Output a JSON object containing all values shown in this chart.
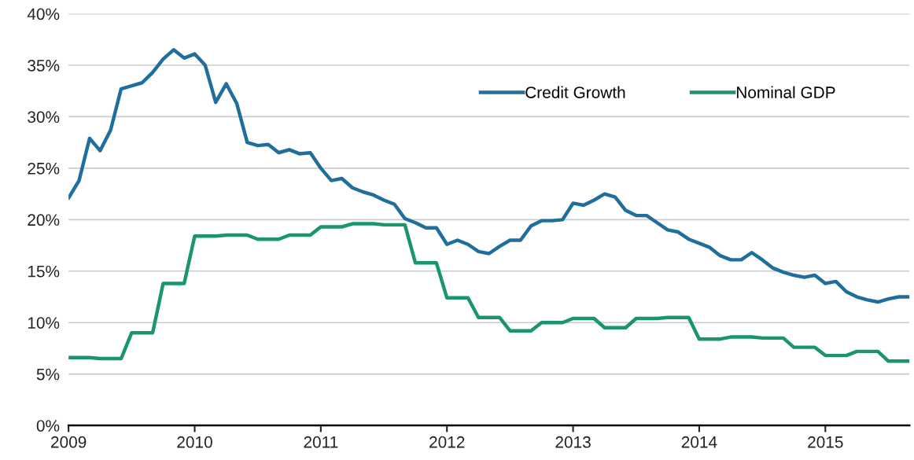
{
  "chart_data": {
    "type": "line",
    "x": [
      "2009-01",
      "2009-02",
      "2009-03",
      "2009-04",
      "2009-05",
      "2009-06",
      "2009-07",
      "2009-08",
      "2009-09",
      "2009-10",
      "2009-11",
      "2009-12",
      "2010-01",
      "2010-02",
      "2010-03",
      "2010-04",
      "2010-05",
      "2010-06",
      "2010-07",
      "2010-08",
      "2010-09",
      "2010-10",
      "2010-11",
      "2010-12",
      "2011-01",
      "2011-02",
      "2011-03",
      "2011-04",
      "2011-05",
      "2011-06",
      "2011-07",
      "2011-08",
      "2011-09",
      "2011-10",
      "2011-11",
      "2011-12",
      "2012-01",
      "2012-02",
      "2012-03",
      "2012-04",
      "2012-05",
      "2012-06",
      "2012-07",
      "2012-08",
      "2012-09",
      "2012-10",
      "2012-11",
      "2012-12",
      "2013-01",
      "2013-02",
      "2013-03",
      "2013-04",
      "2013-05",
      "2013-06",
      "2013-07",
      "2013-08",
      "2013-09",
      "2013-10",
      "2013-11",
      "2013-12",
      "2014-01",
      "2014-02",
      "2014-03",
      "2014-04",
      "2014-05",
      "2014-06",
      "2014-07",
      "2014-08",
      "2014-09",
      "2014-10",
      "2014-11",
      "2014-12",
      "2015-01",
      "2015-02",
      "2015-03",
      "2015-04",
      "2015-05",
      "2015-06",
      "2015-07",
      "2015-08",
      "2015-09"
    ],
    "series": [
      {
        "name": "Credit Growth",
        "color": "#1f6e9c",
        "values": [
          22.1,
          23.8,
          27.9,
          26.7,
          28.7,
          32.7,
          33.0,
          33.3,
          34.3,
          35.6,
          36.5,
          35.7,
          36.1,
          35.0,
          31.4,
          33.2,
          31.3,
          27.5,
          27.2,
          27.3,
          26.5,
          26.8,
          26.4,
          26.5,
          25.0,
          23.8,
          24.0,
          23.1,
          22.7,
          22.4,
          21.9,
          21.5,
          20.1,
          19.7,
          19.2,
          19.2,
          17.6,
          18.0,
          17.6,
          16.9,
          16.7,
          17.4,
          18.0,
          18.0,
          19.4,
          19.9,
          19.9,
          20.0,
          21.6,
          21.4,
          21.9,
          22.5,
          22.2,
          20.9,
          20.4,
          20.4,
          19.7,
          19.0,
          18.8,
          18.1,
          17.7,
          17.3,
          16.5,
          16.1,
          16.1,
          16.8,
          16.1,
          15.3,
          14.9,
          14.6,
          14.4,
          14.6,
          13.8,
          14.0,
          13.0,
          12.5,
          12.2,
          12.0,
          12.3,
          12.5,
          12.5
        ]
      },
      {
        "name": "Nominal GDP",
        "color": "#1a9668",
        "values": [
          6.6,
          6.6,
          6.6,
          6.5,
          6.5,
          6.5,
          9.0,
          9.0,
          9.0,
          13.8,
          13.8,
          13.8,
          18.4,
          18.4,
          18.4,
          18.5,
          18.5,
          18.5,
          18.1,
          18.1,
          18.1,
          18.5,
          18.5,
          18.5,
          19.3,
          19.3,
          19.3,
          19.6,
          19.6,
          19.6,
          19.5,
          19.5,
          19.5,
          15.8,
          15.8,
          15.8,
          12.4,
          12.4,
          12.4,
          10.5,
          10.5,
          10.5,
          9.2,
          9.2,
          9.2,
          10.0,
          10.0,
          10.0,
          10.4,
          10.4,
          10.4,
          9.5,
          9.5,
          9.5,
          10.4,
          10.4,
          10.4,
          10.5,
          10.5,
          10.5,
          8.4,
          8.4,
          8.4,
          8.6,
          8.6,
          8.6,
          8.5,
          8.5,
          8.5,
          7.6,
          7.6,
          7.6,
          6.8,
          6.8,
          6.8,
          7.2,
          7.2,
          7.2,
          6.25,
          6.25,
          6.25
        ]
      }
    ],
    "xlim": [
      "2009-01",
      "2015-09"
    ],
    "xticks": [
      "2009",
      "2010",
      "2011",
      "2012",
      "2013",
      "2014",
      "2015"
    ],
    "ylim": [
      0,
      40
    ],
    "yticks": [
      {
        "value": 0,
        "label": "0%"
      },
      {
        "value": 5,
        "label": "5%"
      },
      {
        "value": 10,
        "label": "10%"
      },
      {
        "value": 15,
        "label": "15%"
      },
      {
        "value": 20,
        "label": "20%"
      },
      {
        "value": 25,
        "label": "25%"
      },
      {
        "value": 30,
        "label": "30%"
      },
      {
        "value": 35,
        "label": "35%"
      },
      {
        "value": 40,
        "label": "40%"
      }
    ],
    "grid": "y",
    "legend": "top right"
  }
}
